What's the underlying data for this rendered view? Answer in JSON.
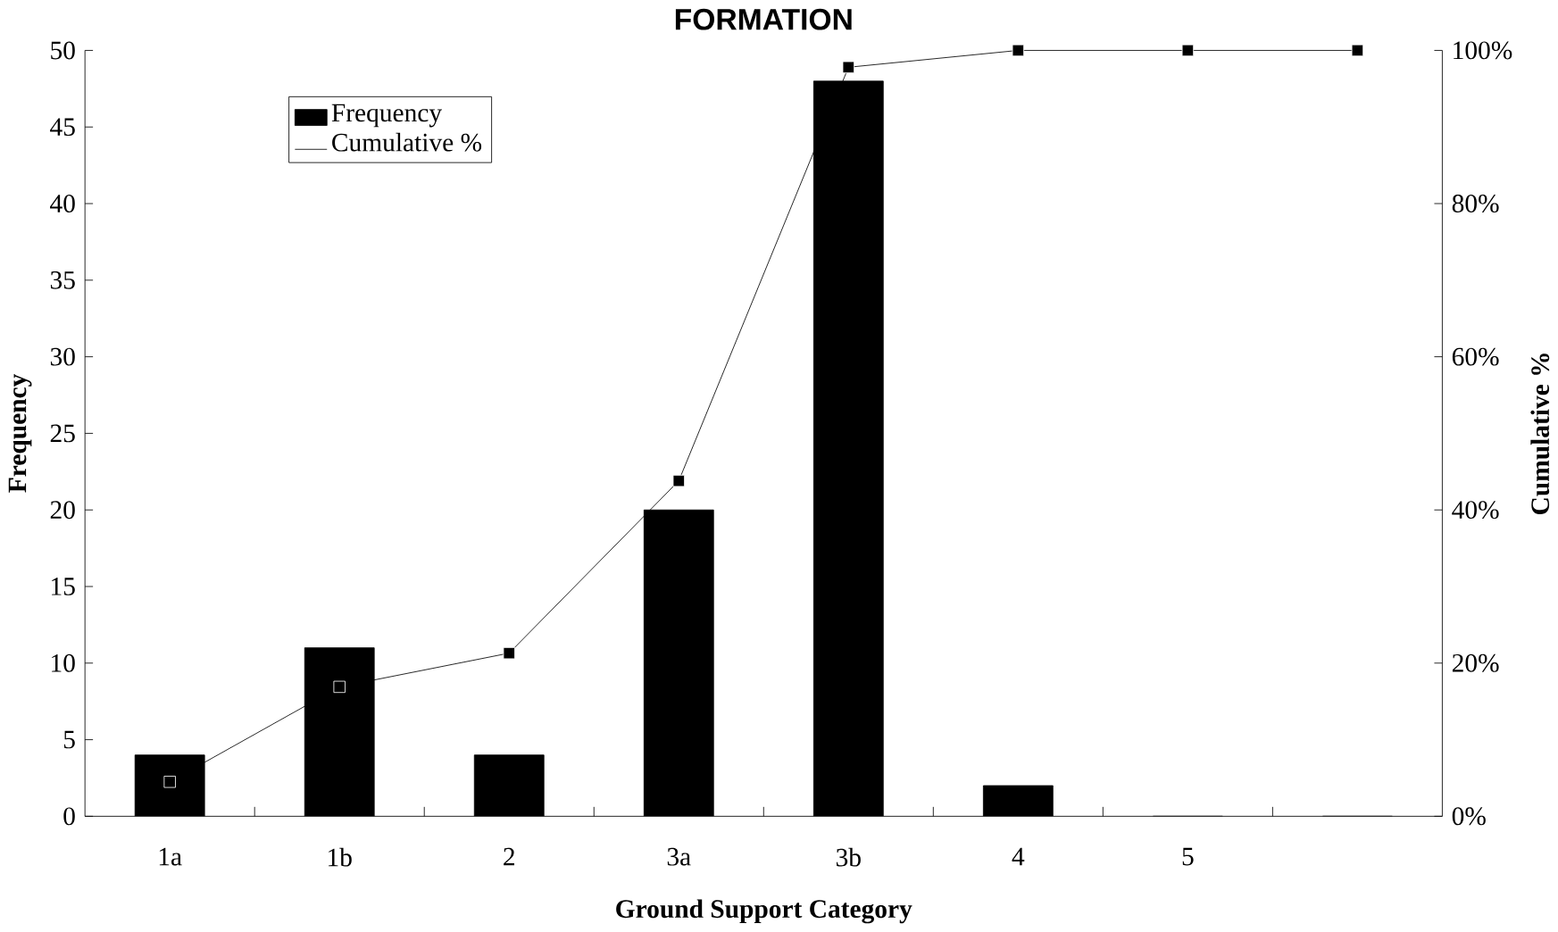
{
  "chart_data": {
    "type": "bar",
    "title": "FORMATION",
    "xlabel": "Ground Support Category",
    "ylabel": "Frequency",
    "y2label": "Cumulative %",
    "categories": [
      "1a",
      "1b",
      "2",
      "3a",
      "3b",
      "4",
      "5",
      null
    ],
    "series": [
      {
        "name": "Frequency",
        "color": "#000000",
        "values": [
          4,
          11,
          4,
          20,
          48,
          2,
          0,
          0
        ]
      },
      {
        "name": "Cumulative %",
        "type": "line",
        "axis": "y2",
        "color": "#000000",
        "marker": "square",
        "line_style": "solid",
        "values": [
          4.5,
          16.9,
          21.3,
          43.8,
          97.8,
          100,
          100,
          100
        ]
      }
    ],
    "ylim": [
      0,
      50
    ],
    "yticks": [
      0,
      5,
      10,
      15,
      20,
      25,
      30,
      35,
      40,
      45,
      50
    ],
    "y2lim": [
      0,
      100
    ],
    "y2ticks": [
      {
        "value": 0,
        "label": "0%"
      },
      {
        "value": 20,
        "label": "20%"
      },
      {
        "value": 40,
        "label": "40%"
      },
      {
        "value": 60,
        "label": "60%"
      },
      {
        "value": 80,
        "label": "80%"
      },
      {
        "value": 100,
        "label": "100%"
      }
    ],
    "grid": false,
    "legend": "top left"
  }
}
